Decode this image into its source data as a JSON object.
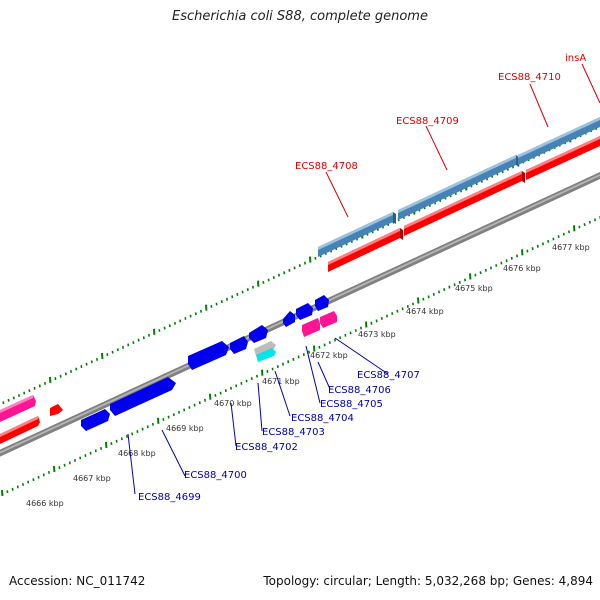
{
  "title": "Escherichia coli S88, complete genome",
  "footer": {
    "accession": "Accession: NC_011742",
    "summary": "Topology: circular; Length: 5,032,268 bp; Genes: 4,894"
  },
  "colors": {
    "forward_gene": "#ff0000",
    "reverse_gene": "#4682b4",
    "blue_gene": "#0000ee",
    "pink_gene": "#ff1493",
    "cyan_gene": "#00ffff",
    "grey_gene": "#bdbdbd",
    "backbone": "#7f7f7f",
    "tick": "#008000",
    "label_forward": "#dd0000",
    "label_reverse": "#0000aa",
    "kbp_label": "#333333"
  },
  "kbp_labels": [
    "4666 kbp",
    "4667 kbp",
    "4668 kbp",
    "4669 kbp",
    "4670 kbp",
    "4671 kbp",
    "4672 kbp",
    "4673 kbp",
    "4674 kbp",
    "4675 kbp",
    "4676 kbp",
    "4677 kbp"
  ],
  "upper_genes": [
    "insA",
    "ECS88_4710",
    "ECS88_4709",
    "ECS88_4708"
  ],
  "lower_genes": [
    "ECS88_4699",
    "ECS88_4700",
    "ECS88_4702",
    "ECS88_4703",
    "ECS88_4704",
    "ECS88_4705",
    "ECS88_4706",
    "ECS88_4707"
  ]
}
